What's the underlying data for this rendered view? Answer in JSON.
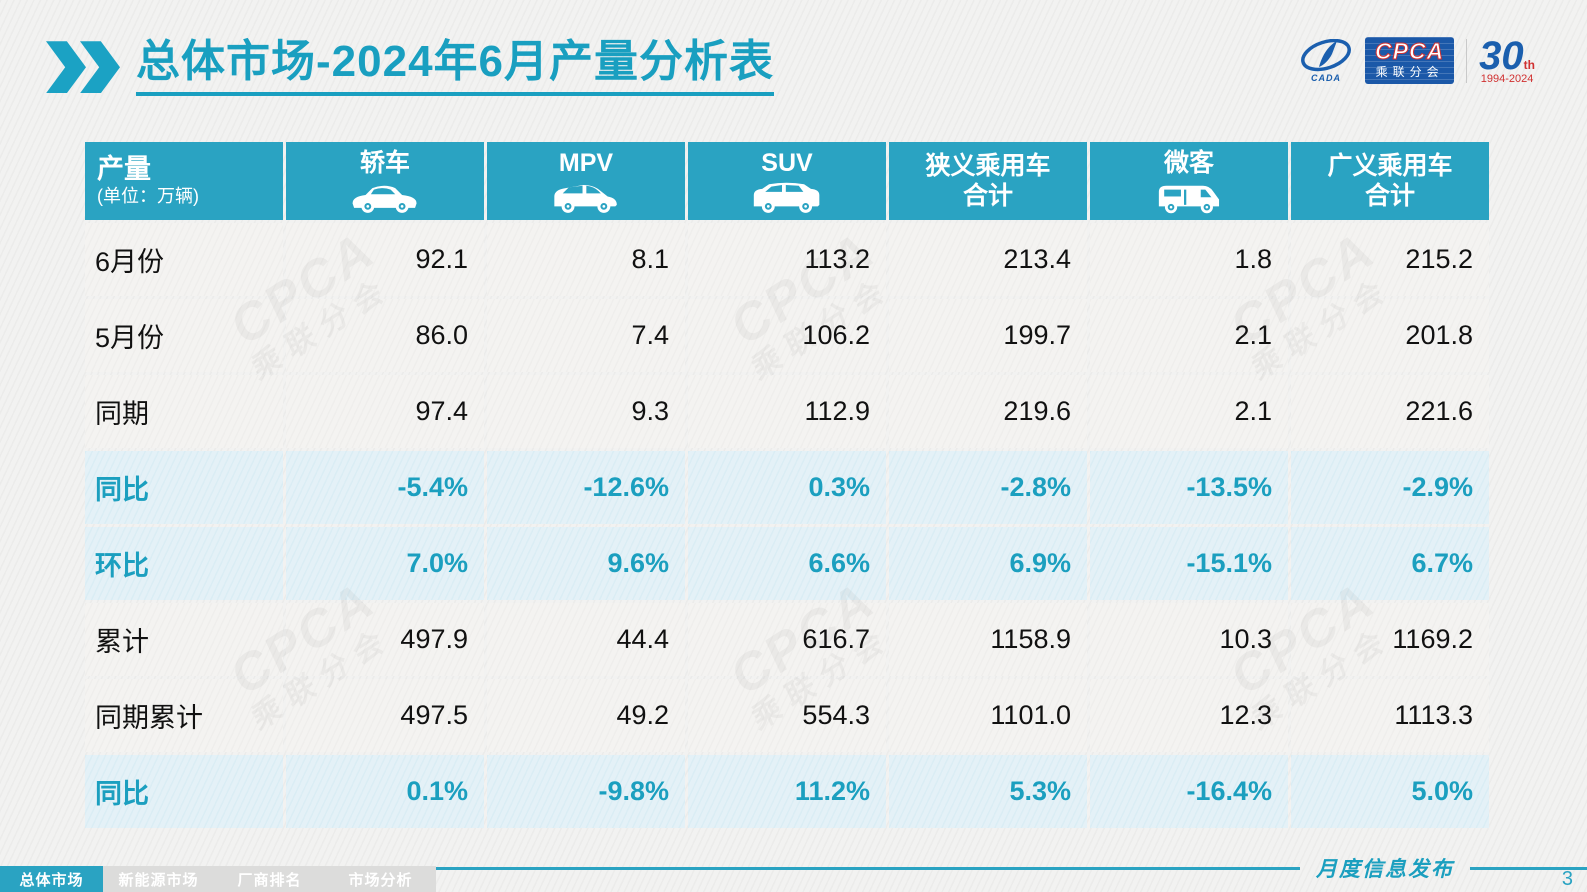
{
  "title": {
    "text": "总体市场-2024年6月产量分析表"
  },
  "logo": {
    "cada_text": "CADA",
    "cpca_text": "CPCA",
    "cpca_subtext": "乘联分会",
    "anniversary_number": "30",
    "anniversary_th": "th",
    "anniversary_years": "1994-2024"
  },
  "watermark": {
    "line1": "CPCA",
    "line2": "乘联分会"
  },
  "table": {
    "header": {
      "label": "产量",
      "unit": "(单位：万辆)",
      "columns": [
        {
          "label": "轿车",
          "icon": "sedan-icon"
        },
        {
          "label": "MPV",
          "icon": "mpv-icon"
        },
        {
          "label": "SUV",
          "icon": "suv-icon"
        },
        {
          "label": "狭义乘用车",
          "label2": "合计",
          "icon": ""
        },
        {
          "label": "微客",
          "icon": "microvan-icon"
        },
        {
          "label": "广义乘用车",
          "label2": "合计",
          "icon": ""
        }
      ]
    },
    "rows": [
      {
        "label": "6月份",
        "type": "value",
        "values": [
          "92.1",
          "8.1",
          "113.2",
          "213.4",
          "1.8",
          "215.2"
        ]
      },
      {
        "label": "5月份",
        "type": "value",
        "values": [
          "86.0",
          "7.4",
          "106.2",
          "199.7",
          "2.1",
          "201.8"
        ]
      },
      {
        "label": "同期",
        "type": "value",
        "values": [
          "97.4",
          "9.3",
          "112.9",
          "219.6",
          "2.1",
          "221.6"
        ]
      },
      {
        "label": "同比",
        "type": "percent",
        "values": [
          "-5.4%",
          "-12.6%",
          "0.3%",
          "-2.8%",
          "-13.5%",
          "-2.9%"
        ]
      },
      {
        "label": "环比",
        "type": "percent",
        "values": [
          "7.0%",
          "9.6%",
          "6.6%",
          "6.9%",
          "-15.1%",
          "6.7%"
        ]
      },
      {
        "label": "累计",
        "type": "value",
        "values": [
          "497.9",
          "44.4",
          "616.7",
          "1158.9",
          "10.3",
          "1169.2"
        ]
      },
      {
        "label": "同期累计",
        "type": "value",
        "values": [
          "497.5",
          "49.2",
          "554.3",
          "1101.0",
          "12.3",
          "1113.3"
        ]
      },
      {
        "label": "同比",
        "type": "percent",
        "values": [
          "0.1%",
          "-9.8%",
          "11.2%",
          "5.3%",
          "-16.4%",
          "5.0%"
        ]
      }
    ]
  },
  "chart_data": {
    "type": "table",
    "title": "总体市场-2024年6月产量分析表",
    "unit": "万辆",
    "categories": [
      "轿车",
      "MPV",
      "SUV",
      "狭义乘用车合计",
      "微客",
      "广义乘用车合计"
    ],
    "series": [
      {
        "name": "6月份",
        "values": [
          92.1,
          8.1,
          113.2,
          213.4,
          1.8,
          215.2
        ]
      },
      {
        "name": "5月份",
        "values": [
          86.0,
          7.4,
          106.2,
          199.7,
          2.1,
          201.8
        ]
      },
      {
        "name": "同期",
        "values": [
          97.4,
          9.3,
          112.9,
          219.6,
          2.1,
          221.6
        ]
      },
      {
        "name": "同比",
        "values": [
          "-5.4%",
          "-12.6%",
          "0.3%",
          "-2.8%",
          "-13.5%",
          "-2.9%"
        ]
      },
      {
        "name": "环比",
        "values": [
          "7.0%",
          "9.6%",
          "6.6%",
          "6.9%",
          "-15.1%",
          "6.7%"
        ]
      },
      {
        "name": "累计",
        "values": [
          497.9,
          44.4,
          616.7,
          1158.9,
          10.3,
          1169.2
        ]
      },
      {
        "name": "同期累计",
        "values": [
          497.5,
          49.2,
          554.3,
          1101.0,
          12.3,
          1113.3
        ]
      },
      {
        "name": "同比(累计)",
        "values": [
          "0.1%",
          "-9.8%",
          "11.2%",
          "5.3%",
          "-16.4%",
          "5.0%"
        ]
      }
    ]
  },
  "footer": {
    "tabs": [
      {
        "label": "总体市场",
        "active": true
      },
      {
        "label": "新能源市场",
        "active": false
      },
      {
        "label": "厂商排名",
        "active": false
      },
      {
        "label": "市场分析",
        "active": false
      }
    ],
    "release_label": "月度信息发布",
    "page_number": "3"
  },
  "colors": {
    "teal_accent": "#1b9fbf",
    "header_teal": "#2aa3c2",
    "percent_row_bg": "#e4f1f7",
    "logo_blue": "#1b58a8",
    "logo_red": "#d03030"
  }
}
